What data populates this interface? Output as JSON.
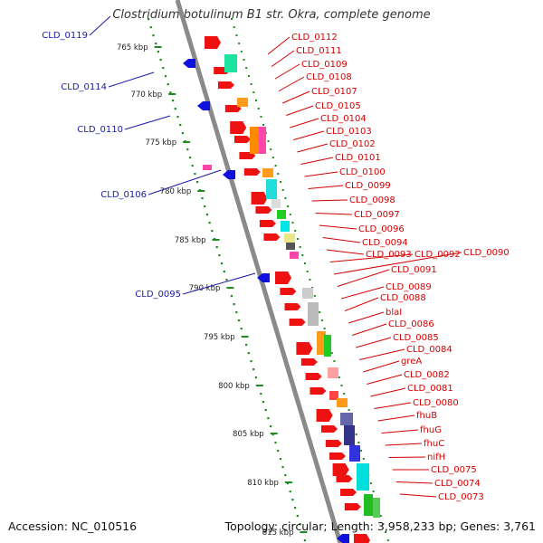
{
  "title": "Clostridium botulinum B1 str. Okra, complete genome",
  "footer": {
    "accession": "Accession: NC_010516",
    "summary": "Topology: circular; Length: 3,958,233 bp; Genes: 3,761"
  },
  "colors": {
    "backbone": "#8a8a8a",
    "gene_forward": "#ee1111",
    "gene_reverse": "#1111dd",
    "scale_dots": "#1f8a1f",
    "label_left": "#1a1aa6",
    "label_right": "#d40000"
  },
  "scale_ticks": [
    "765 kbp",
    "770 kbp",
    "775 kbp",
    "780 kbp",
    "785 kbp",
    "790 kbp",
    "795 kbp",
    "800 kbp",
    "805 kbp",
    "810 kbp",
    "815 kbp"
  ],
  "left_labels": [
    "CLD_0119",
    "CLD_0114",
    "CLD_0110",
    "CLD_0106",
    "CLD_0095"
  ],
  "right_labels": [
    "CLD_0112",
    "CLD_0111",
    "CLD_0109",
    "CLD_0108",
    "CLD_0107",
    "CLD_0105",
    "CLD_0104",
    "CLD_0103",
    "CLD_0102",
    "CLD_0101",
    "CLD_0100",
    "CLD_0099",
    "CLD_0098",
    "CLD_0097",
    "CLD_0096",
    "CLD_0094",
    "CLD_0093",
    "CLD_0092",
    "CLD_0090",
    "CLD_0091",
    "CLD_0089",
    "CLD_0088",
    "blaI",
    "CLD_0086",
    "CLD_0085",
    "CLD_0084",
    "greA",
    "CLD_0082",
    "CLD_0081",
    "CLD_0080",
    "fhuB",
    "fhuG",
    "fhuC",
    "nifH",
    "CLD_0075",
    "CLD_0074",
    "CLD_0073"
  ]
}
